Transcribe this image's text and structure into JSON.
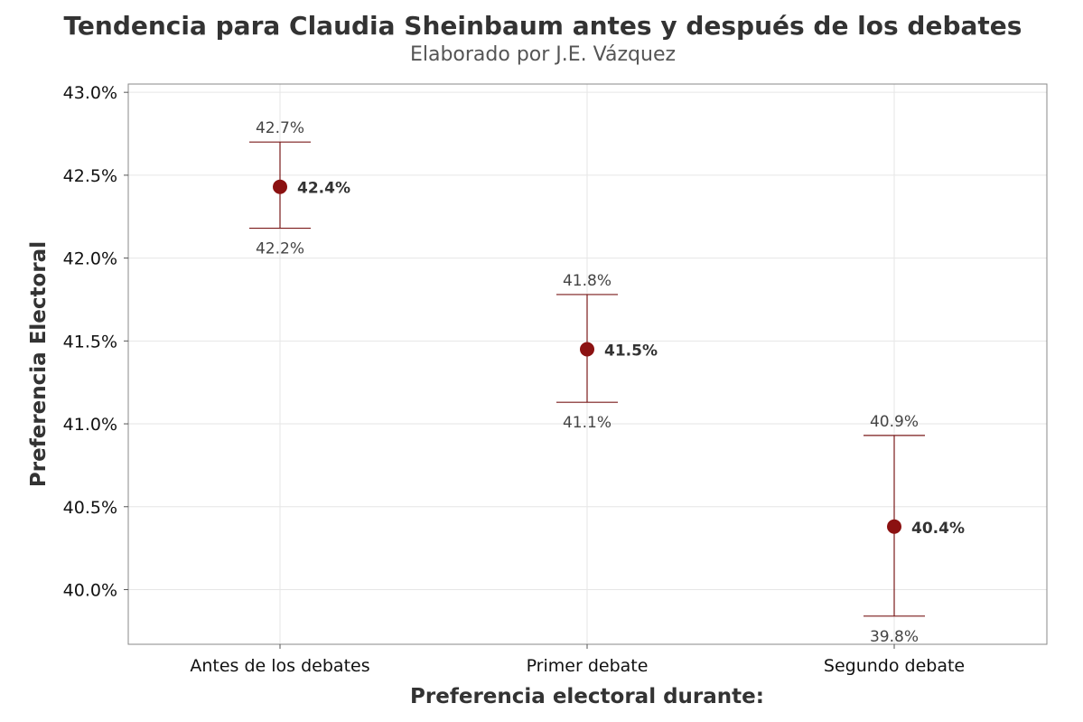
{
  "chart_data": {
    "type": "scatter",
    "title": "Tendencia para Claudia Sheinbaum antes y después de los debates",
    "subtitle": "Elaborado por J.E. Vázquez",
    "xlabel": "Preferencia electoral durante:",
    "ylabel": "Preferencia Electoral",
    "categories": [
      "Antes de los debates",
      "Primer debate",
      "Segundo debate"
    ],
    "values": [
      42.43,
      41.45,
      40.38
    ],
    "lower": [
      42.18,
      41.13,
      39.84
    ],
    "upper": [
      42.7,
      41.78,
      40.93
    ],
    "value_labels": [
      "42.4%",
      "41.5%",
      "40.4%"
    ],
    "lower_labels": [
      "42.2%",
      "41.1%",
      "39.8%"
    ],
    "upper_labels": [
      "42.7%",
      "41.8%",
      "40.9%"
    ],
    "ylim": [
      39.67,
      43.05
    ],
    "yticks": [
      40.0,
      40.5,
      41.0,
      41.5,
      42.0,
      42.5,
      43.0
    ],
    "ytick_labels": [
      "40.0%",
      "40.5%",
      "41.0%",
      "41.5%",
      "42.0%",
      "42.5%",
      "43.0%"
    ],
    "grid": true,
    "colors": {
      "point": "#8b1111",
      "errorbar": "#7a1a1a",
      "grid": "#e6e6e6",
      "panel_border": "#888888"
    }
  }
}
